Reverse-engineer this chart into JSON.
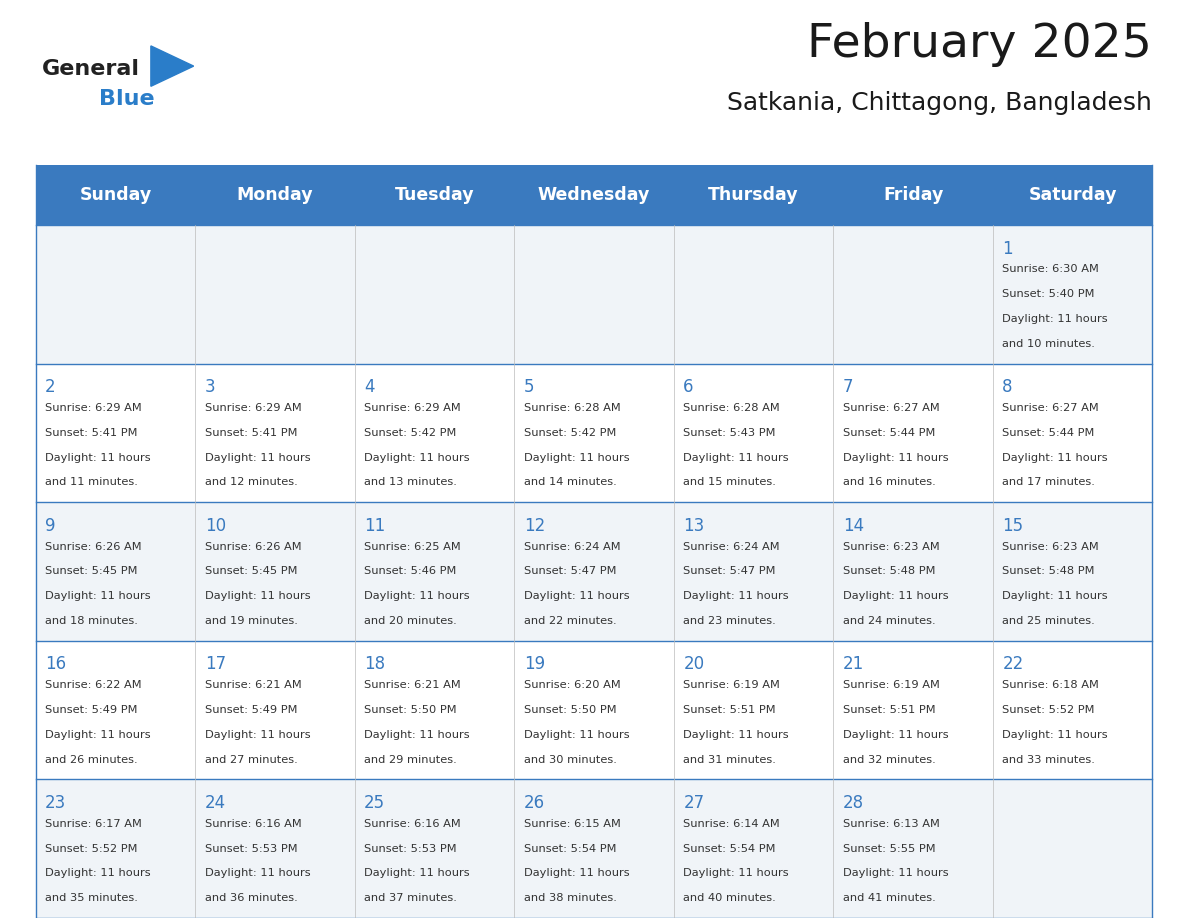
{
  "title": "February 2025",
  "subtitle": "Satkania, Chittagong, Bangladesh",
  "header_color": "#3a7abf",
  "header_text_color": "#ffffff",
  "cell_bg_even": "#f0f4f8",
  "cell_bg_odd": "#ffffff",
  "border_color": "#3a7abf",
  "days_of_week": [
    "Sunday",
    "Monday",
    "Tuesday",
    "Wednesday",
    "Thursday",
    "Friday",
    "Saturday"
  ],
  "weeks": [
    [
      {
        "day": null,
        "sunrise": null,
        "sunset": null,
        "daylight": null
      },
      {
        "day": null,
        "sunrise": null,
        "sunset": null,
        "daylight": null
      },
      {
        "day": null,
        "sunrise": null,
        "sunset": null,
        "daylight": null
      },
      {
        "day": null,
        "sunrise": null,
        "sunset": null,
        "daylight": null
      },
      {
        "day": null,
        "sunrise": null,
        "sunset": null,
        "daylight": null
      },
      {
        "day": null,
        "sunrise": null,
        "sunset": null,
        "daylight": null
      },
      {
        "day": 1,
        "sunrise": "6:30 AM",
        "sunset": "5:40 PM",
        "daylight": "11 hours and 10 minutes."
      }
    ],
    [
      {
        "day": 2,
        "sunrise": "6:29 AM",
        "sunset": "5:41 PM",
        "daylight": "11 hours and 11 minutes."
      },
      {
        "day": 3,
        "sunrise": "6:29 AM",
        "sunset": "5:41 PM",
        "daylight": "11 hours and 12 minutes."
      },
      {
        "day": 4,
        "sunrise": "6:29 AM",
        "sunset": "5:42 PM",
        "daylight": "11 hours and 13 minutes."
      },
      {
        "day": 5,
        "sunrise": "6:28 AM",
        "sunset": "5:42 PM",
        "daylight": "11 hours and 14 minutes."
      },
      {
        "day": 6,
        "sunrise": "6:28 AM",
        "sunset": "5:43 PM",
        "daylight": "11 hours and 15 minutes."
      },
      {
        "day": 7,
        "sunrise": "6:27 AM",
        "sunset": "5:44 PM",
        "daylight": "11 hours and 16 minutes."
      },
      {
        "day": 8,
        "sunrise": "6:27 AM",
        "sunset": "5:44 PM",
        "daylight": "11 hours and 17 minutes."
      }
    ],
    [
      {
        "day": 9,
        "sunrise": "6:26 AM",
        "sunset": "5:45 PM",
        "daylight": "11 hours and 18 minutes."
      },
      {
        "day": 10,
        "sunrise": "6:26 AM",
        "sunset": "5:45 PM",
        "daylight": "11 hours and 19 minutes."
      },
      {
        "day": 11,
        "sunrise": "6:25 AM",
        "sunset": "5:46 PM",
        "daylight": "11 hours and 20 minutes."
      },
      {
        "day": 12,
        "sunrise": "6:24 AM",
        "sunset": "5:47 PM",
        "daylight": "11 hours and 22 minutes."
      },
      {
        "day": 13,
        "sunrise": "6:24 AM",
        "sunset": "5:47 PM",
        "daylight": "11 hours and 23 minutes."
      },
      {
        "day": 14,
        "sunrise": "6:23 AM",
        "sunset": "5:48 PM",
        "daylight": "11 hours and 24 minutes."
      },
      {
        "day": 15,
        "sunrise": "6:23 AM",
        "sunset": "5:48 PM",
        "daylight": "11 hours and 25 minutes."
      }
    ],
    [
      {
        "day": 16,
        "sunrise": "6:22 AM",
        "sunset": "5:49 PM",
        "daylight": "11 hours and 26 minutes."
      },
      {
        "day": 17,
        "sunrise": "6:21 AM",
        "sunset": "5:49 PM",
        "daylight": "11 hours and 27 minutes."
      },
      {
        "day": 18,
        "sunrise": "6:21 AM",
        "sunset": "5:50 PM",
        "daylight": "11 hours and 29 minutes."
      },
      {
        "day": 19,
        "sunrise": "6:20 AM",
        "sunset": "5:50 PM",
        "daylight": "11 hours and 30 minutes."
      },
      {
        "day": 20,
        "sunrise": "6:19 AM",
        "sunset": "5:51 PM",
        "daylight": "11 hours and 31 minutes."
      },
      {
        "day": 21,
        "sunrise": "6:19 AM",
        "sunset": "5:51 PM",
        "daylight": "11 hours and 32 minutes."
      },
      {
        "day": 22,
        "sunrise": "6:18 AM",
        "sunset": "5:52 PM",
        "daylight": "11 hours and 33 minutes."
      }
    ],
    [
      {
        "day": 23,
        "sunrise": "6:17 AM",
        "sunset": "5:52 PM",
        "daylight": "11 hours and 35 minutes."
      },
      {
        "day": 24,
        "sunrise": "6:16 AM",
        "sunset": "5:53 PM",
        "daylight": "11 hours and 36 minutes."
      },
      {
        "day": 25,
        "sunrise": "6:16 AM",
        "sunset": "5:53 PM",
        "daylight": "11 hours and 37 minutes."
      },
      {
        "day": 26,
        "sunrise": "6:15 AM",
        "sunset": "5:54 PM",
        "daylight": "11 hours and 38 minutes."
      },
      {
        "day": 27,
        "sunrise": "6:14 AM",
        "sunset": "5:54 PM",
        "daylight": "11 hours and 40 minutes."
      },
      {
        "day": 28,
        "sunrise": "6:13 AM",
        "sunset": "5:55 PM",
        "daylight": "11 hours and 41 minutes."
      },
      {
        "day": null,
        "sunrise": null,
        "sunset": null,
        "daylight": null
      }
    ]
  ],
  "logo_text_general": "General",
  "logo_text_blue": "Blue",
  "logo_general_color": "#222222",
  "logo_blue_color": "#2a7dc9",
  "logo_triangle_color": "#2a7dc9"
}
